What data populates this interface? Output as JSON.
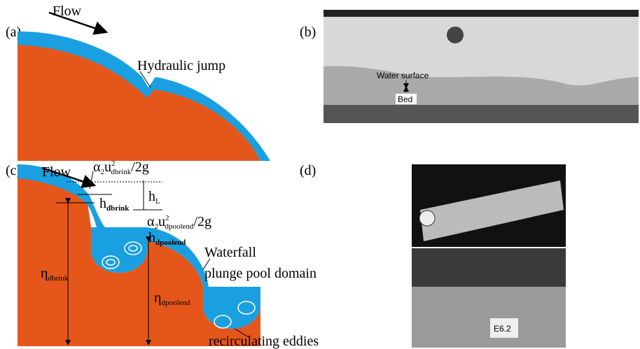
{
  "panels": {
    "a": {
      "label": "(a)",
      "flow": "Flow",
      "hydraulic_jump": "Hydraulic jump"
    },
    "b": {
      "label": "(b)",
      "water_surface": "Water surface",
      "bed": "Bed"
    },
    "c": {
      "label": "(c)",
      "flow": "Flow",
      "velocity_head_brink": {
        "alpha": "α",
        "alpha_sub": "2",
        "u": "u",
        "u_sup": "2",
        "u_sub": "dbrink",
        "tail": "/2g"
      },
      "h_loss": {
        "base": "h",
        "sub": "L"
      },
      "h_brink": {
        "base": "h",
        "sub": "dbrink"
      },
      "velocity_head_poolend": {
        "alpha": "α",
        "alpha_sub": "2",
        "u": "u",
        "u_sup": "2",
        "u_sub": "dpoolend",
        "tail": "/2g"
      },
      "h_poolend": {
        "base": "h",
        "sub": "dpoolend"
      },
      "waterfall": "Waterfall",
      "plunge_pool": "plunge pool domain",
      "eta_brink": {
        "base": "η",
        "sub": "dbrink"
      },
      "eta_poolend": {
        "base": "η",
        "sub": "dpoolend"
      },
      "eddies": "recirculating eddies"
    },
    "d": {
      "label": "(d)",
      "sign": "E6.2"
    }
  }
}
